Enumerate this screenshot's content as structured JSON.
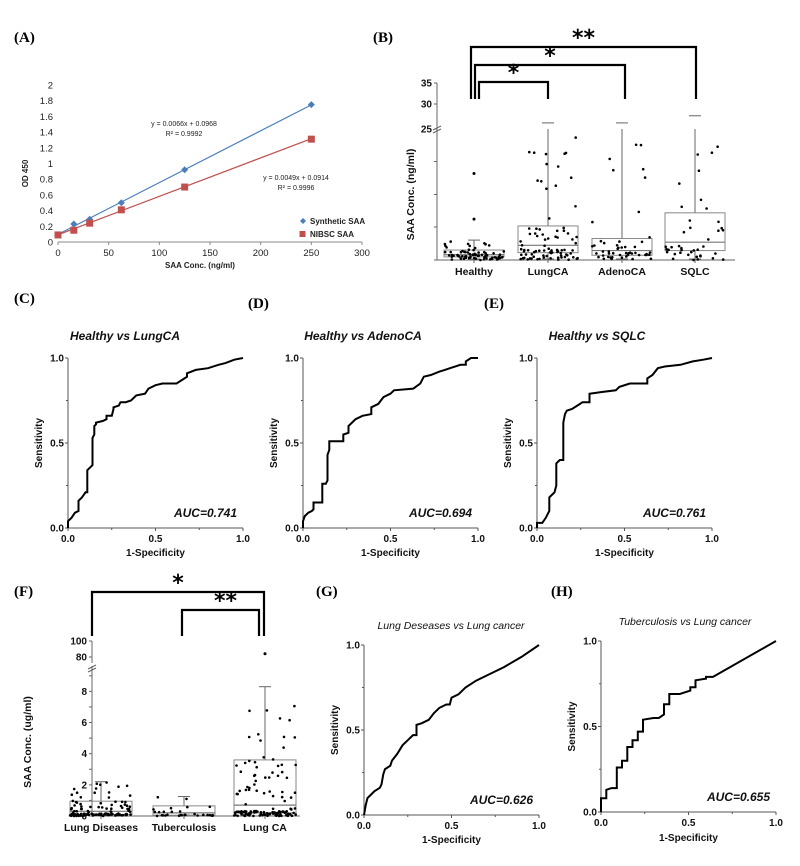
{
  "panels": {
    "A": "(A)",
    "B": "(B)",
    "C": "(C)",
    "D": "(D)",
    "E": "(E)",
    "F": "(F)",
    "G": "(G)",
    "H": "(H)"
  },
  "chart_data": [
    {
      "id": "A",
      "type": "scatter",
      "title": "",
      "xlabel": "SAA Conc. (ng/ml)",
      "ylabel": "OD 450",
      "xlim": [
        0,
        300
      ],
      "ylim": [
        0,
        2
      ],
      "xticks": [
        "0",
        "50",
        "100",
        "150",
        "200",
        "250",
        "300"
      ],
      "yticks": [
        "0",
        "0.2",
        "0.4",
        "0.6",
        "0.8",
        "1",
        "1.2",
        "1.4",
        "1.6",
        "1.8",
        "2"
      ],
      "legend_position": "bottom-right",
      "series": [
        {
          "name": "Synthetic SAA",
          "color": "#4a7ebb",
          "marker": "diamond",
          "x": [
            0,
            15.6,
            31.25,
            62.5,
            125,
            250
          ],
          "y": [
            0.09,
            0.23,
            0.29,
            0.5,
            0.92,
            1.75
          ],
          "fit_equation": "y = 0.0066x  +  0.0968",
          "r2": "R² = 0.9992",
          "fit": {
            "slope": 0.0066,
            "intercept": 0.0968
          }
        },
        {
          "name": "NIBSC SAA",
          "color": "#c0504d",
          "marker": "square",
          "x": [
            0,
            15.6,
            31.25,
            62.5,
            125,
            250
          ],
          "y": [
            0.09,
            0.15,
            0.24,
            0.41,
            0.7,
            1.31
          ],
          "fit_equation": "y = 0.0049x  +  0.0914",
          "r2": "R² = 0.9996",
          "fit": {
            "slope": 0.0049,
            "intercept": 0.0914
          }
        }
      ]
    },
    {
      "id": "B",
      "type": "box",
      "ylabel": "SAA Conc. (ng/ml)",
      "categories": [
        "Healthy",
        "LungCA",
        "AdenoCA",
        "SQLC"
      ],
      "yticks_upper": [
        "25",
        "30",
        "35"
      ],
      "axis_break": true,
      "boxes": [
        {
          "name": "Healthy",
          "q1": 0.6,
          "median": 1.0,
          "q3": 1.9,
          "whisker_high": 3.8,
          "outliers": [
            7.8,
            16.5
          ]
        },
        {
          "name": "LungCA",
          "q1": 1.4,
          "median": 2.8,
          "q3": 6.5,
          "whisker_high": 25.5
        },
        {
          "name": "AdenoCA",
          "q1": 0.9,
          "median": 1.8,
          "q3": 4.1,
          "whisker_high": 25.5
        },
        {
          "name": "SQLC",
          "q1": 1.8,
          "median": 3.4,
          "q3": 9.0,
          "whisker_high": 27.2
        }
      ],
      "significance": [
        {
          "from": "Healthy",
          "to": "LungCA",
          "label": "*"
        },
        {
          "from": "Healthy",
          "to": "AdenoCA",
          "label": "*"
        },
        {
          "from": "Healthy",
          "to": "SQLC",
          "label": "**"
        }
      ]
    },
    {
      "id": "C",
      "type": "line",
      "title": "Healthy vs LungCA",
      "xlabel": "1-Specificity",
      "ylabel": "Sensitivity",
      "xlim": [
        0,
        1
      ],
      "ylim": [
        0,
        1
      ],
      "xticks": [
        "0.0",
        "0.5",
        "1.0"
      ],
      "yticks": [
        "0.0",
        "0.5",
        "1.0"
      ],
      "auc": "AUC=0.741",
      "x": [
        0,
        0,
        0.02,
        0.04,
        0.06,
        0.06,
        0.08,
        0.1,
        0.11,
        0.11,
        0.13,
        0.14,
        0.14,
        0.15,
        0.15,
        0.16,
        0.16,
        0.2,
        0.22,
        0.22,
        0.25,
        0.26,
        0.26,
        0.29,
        0.3,
        0.33,
        0.36,
        0.39,
        0.44,
        0.46,
        0.5,
        0.54,
        0.62,
        0.65,
        0.68,
        0.68,
        0.73,
        0.8,
        0.86,
        0.9,
        0.95,
        1.0
      ],
      "y": [
        0,
        0.04,
        0.06,
        0.09,
        0.1,
        0.16,
        0.18,
        0.21,
        0.21,
        0.34,
        0.36,
        0.37,
        0.53,
        0.55,
        0.6,
        0.61,
        0.62,
        0.63,
        0.64,
        0.66,
        0.66,
        0.7,
        0.71,
        0.72,
        0.74,
        0.74,
        0.75,
        0.78,
        0.79,
        0.82,
        0.84,
        0.85,
        0.85,
        0.87,
        0.89,
        0.91,
        0.93,
        0.94,
        0.96,
        0.97,
        0.99,
        1.0
      ]
    },
    {
      "id": "D",
      "type": "line",
      "title": "Healthy vs AdenoCA",
      "xlabel": "1-Specificity",
      "ylabel": "Sensitivity",
      "xlim": [
        0,
        1
      ],
      "ylim": [
        0,
        1
      ],
      "xticks": [
        "0.0",
        "0.5",
        "1.0"
      ],
      "yticks": [
        "0.0",
        "0.5",
        "1.0"
      ],
      "auc": "AUC=0.694",
      "x": [
        0,
        0,
        0.01,
        0.03,
        0.05,
        0.06,
        0.06,
        0.11,
        0.11,
        0.13,
        0.14,
        0.14,
        0.15,
        0.15,
        0.23,
        0.23,
        0.26,
        0.26,
        0.28,
        0.3,
        0.34,
        0.39,
        0.39,
        0.43,
        0.46,
        0.5,
        0.52,
        0.63,
        0.67,
        0.69,
        0.73,
        0.78,
        0.81,
        0.84,
        0.9,
        0.93,
        0.93,
        0.96,
        1.0
      ],
      "y": [
        0,
        0.04,
        0.07,
        0.09,
        0.1,
        0.11,
        0.15,
        0.15,
        0.26,
        0.26,
        0.28,
        0.43,
        0.46,
        0.51,
        0.51,
        0.55,
        0.56,
        0.6,
        0.62,
        0.64,
        0.66,
        0.67,
        0.71,
        0.73,
        0.77,
        0.79,
        0.81,
        0.82,
        0.85,
        0.89,
        0.9,
        0.92,
        0.93,
        0.94,
        0.96,
        0.96,
        0.98,
        1.0,
        1.0
      ]
    },
    {
      "id": "E",
      "type": "line",
      "title": "Healthy vs SQLC",
      "xlabel": "1-Specificity",
      "ylabel": "Sensitivity",
      "xlim": [
        0,
        1
      ],
      "ylim": [
        0,
        1
      ],
      "xticks": [
        "0.0",
        "0.5",
        "1.0"
      ],
      "yticks": [
        "0.0",
        "0.5",
        "1.0"
      ],
      "auc": "AUC=0.761",
      "x": [
        0,
        0,
        0.03,
        0.05,
        0.06,
        0.07,
        0.07,
        0.1,
        0.11,
        0.11,
        0.13,
        0.15,
        0.15,
        0.16,
        0.17,
        0.2,
        0.23,
        0.26,
        0.3,
        0.3,
        0.37,
        0.45,
        0.47,
        0.53,
        0.63,
        0.63,
        0.66,
        0.69,
        0.73,
        0.82,
        0.89,
        0.95,
        1.0
      ],
      "y": [
        0,
        0.03,
        0.03,
        0.06,
        0.08,
        0.1,
        0.18,
        0.21,
        0.25,
        0.38,
        0.4,
        0.4,
        0.62,
        0.67,
        0.69,
        0.7,
        0.72,
        0.74,
        0.74,
        0.79,
        0.8,
        0.81,
        0.83,
        0.85,
        0.85,
        0.88,
        0.9,
        0.94,
        0.95,
        0.96,
        0.98,
        0.99,
        1.0
      ]
    },
    {
      "id": "F",
      "type": "box",
      "ylabel": "SAA Conc. (ug/ml)",
      "categories": [
        "Lung Diseases",
        "Tuberculosis",
        "Lung CA"
      ],
      "yticks_lower": [
        "0",
        "2",
        "4",
        "6",
        "8"
      ],
      "yticks_upper": [
        "80",
        "100"
      ],
      "axis_break": true,
      "boxes": [
        {
          "name": "Lung Diseases",
          "q1": 0.1,
          "median": 0.3,
          "q3": 0.95,
          "whisker_high": 2.2
        },
        {
          "name": "Tuberculosis",
          "q1": 0.05,
          "median": 0.2,
          "q3": 0.65,
          "whisker_high": 1.25
        },
        {
          "name": "Lung CA",
          "q1": 0.2,
          "median": 0.7,
          "q3": 3.6,
          "whisker_high": 8.3,
          "outliers": [
            84
          ]
        }
      ],
      "significance": [
        {
          "from": "Lung Diseases",
          "to": "Lung CA",
          "label": "*"
        },
        {
          "from": "Tuberculosis",
          "to": "Lung CA",
          "label": "**"
        }
      ]
    },
    {
      "id": "G",
      "type": "line",
      "title": "Lung Deseases vs Lung cancer",
      "xlabel": "1-Specificity",
      "ylabel": "Sensitivity",
      "xlim": [
        0,
        1
      ],
      "ylim": [
        0,
        1
      ],
      "xticks": [
        "0.0",
        "0.5",
        "1.0"
      ],
      "yticks": [
        "0.0",
        "0.5",
        "1.0"
      ],
      "auc": "AUC=0.626",
      "x": [
        0,
        0.01,
        0.02,
        0.04,
        0.06,
        0.09,
        0.1,
        0.11,
        0.12,
        0.15,
        0.16,
        0.19,
        0.22,
        0.25,
        0.28,
        0.3,
        0.3,
        0.33,
        0.37,
        0.4,
        0.43,
        0.47,
        0.49,
        0.5,
        0.54,
        0.58,
        0.64,
        0.7,
        0.8,
        0.9,
        1.0
      ],
      "y": [
        0,
        0.06,
        0.1,
        0.12,
        0.14,
        0.16,
        0.18,
        0.24,
        0.27,
        0.29,
        0.32,
        0.36,
        0.41,
        0.44,
        0.47,
        0.47,
        0.53,
        0.54,
        0.56,
        0.6,
        0.63,
        0.65,
        0.65,
        0.69,
        0.71,
        0.75,
        0.79,
        0.82,
        0.87,
        0.93,
        1.0
      ]
    },
    {
      "id": "H",
      "type": "line",
      "title": "Tuberculosis vs Lung cancer",
      "xlabel": "1-Specificity",
      "ylabel": "Sensitivity",
      "xlim": [
        0,
        1
      ],
      "ylim": [
        0,
        1
      ],
      "xticks": [
        "0.0",
        "0.5",
        "1.0"
      ],
      "yticks": [
        "0.0",
        "0.5",
        "1.0"
      ],
      "auc": "AUC=0.655",
      "x": [
        0,
        0,
        0.03,
        0.03,
        0.06,
        0.09,
        0.09,
        0.12,
        0.12,
        0.15,
        0.15,
        0.18,
        0.18,
        0.21,
        0.21,
        0.24,
        0.24,
        0.3,
        0.33,
        0.36,
        0.36,
        0.39,
        0.39,
        0.45,
        0.48,
        0.51,
        0.51,
        0.54,
        0.54,
        0.6,
        0.6,
        0.64,
        1.0
      ],
      "y": [
        0,
        0.08,
        0.08,
        0.13,
        0.14,
        0.14,
        0.26,
        0.26,
        0.3,
        0.3,
        0.38,
        0.38,
        0.42,
        0.42,
        0.47,
        0.47,
        0.54,
        0.55,
        0.55,
        0.57,
        0.63,
        0.63,
        0.69,
        0.69,
        0.7,
        0.71,
        0.73,
        0.73,
        0.77,
        0.78,
        0.79,
        0.79,
        1.0
      ]
    }
  ]
}
